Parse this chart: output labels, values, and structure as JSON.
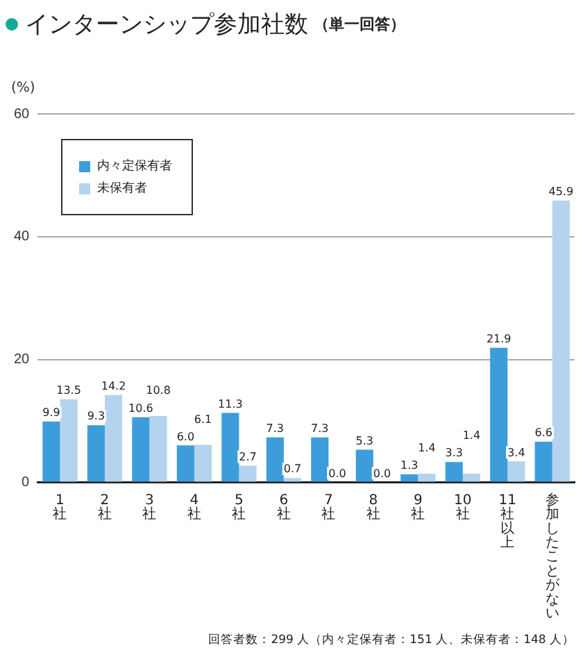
{
  "chart_data": {
    "type": "bar",
    "title": "インターンシップ参加社数",
    "subtitle": "（単一回答）",
    "ylabel": "(%)",
    "annotations": [
      "回答者数：299 人（内々定保有者：151 人、未保有者：148 人）"
    ],
    "categories": [
      "1社",
      "2社",
      "3社",
      "4社",
      "5社",
      "6社",
      "7社",
      "8社",
      "9社",
      "10社",
      "11社以上",
      "参加したことがない"
    ],
    "series": [
      {
        "name": "内々定保有者",
        "color": "#3d9ddb",
        "values": [
          9.9,
          9.3,
          10.6,
          6.0,
          11.3,
          7.3,
          7.3,
          5.3,
          1.3,
          3.3,
          21.9,
          6.6
        ],
        "value_labels": [
          "9.9",
          "9.3",
          "10.6",
          "6.0",
          "11.3",
          "7.3",
          "7.3",
          "5.3",
          "1.3",
          "3.3",
          "21.9",
          "6.6"
        ]
      },
      {
        "name": "未保有者",
        "color": "#b4d3ef",
        "values": [
          13.5,
          14.2,
          10.8,
          6.1,
          2.7,
          0.7,
          0.0,
          0.0,
          1.4,
          1.4,
          3.4,
          45.9
        ],
        "value_labels": [
          "13.5",
          "14.2",
          "10.8",
          "6.1",
          "2.7",
          "0.7",
          "0.0",
          "0.0",
          "1.4",
          "1.4",
          "3.4",
          "45.9"
        ]
      }
    ],
    "ylim": [
      0,
      60
    ],
    "yticks": [
      0,
      20,
      40,
      60
    ],
    "grid": "y",
    "legend": "top left"
  }
}
